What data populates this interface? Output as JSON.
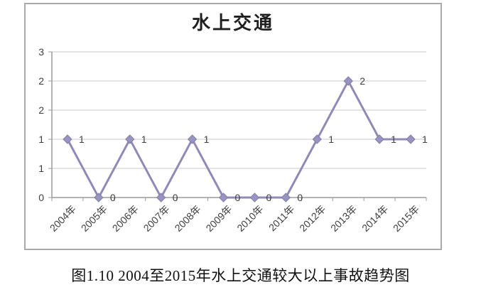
{
  "page": {
    "background": "#ffffff"
  },
  "chart": {
    "title": "水上交通",
    "frame_border_color": "#a9a9a9"
  },
  "caption": {
    "text": "图1.10 2004至2015年水上交通较大以上事故趋势图"
  },
  "chart_data": {
    "type": "line",
    "title": "水上交通",
    "categories": [
      "2004年",
      "2005年",
      "2006年",
      "2007年",
      "2008年",
      "2009年",
      "2010年",
      "2011年",
      "2012年",
      "2013年",
      "2014年",
      "2015年"
    ],
    "values": [
      1,
      0,
      1,
      0,
      1,
      0,
      0,
      0,
      1,
      2,
      1,
      1
    ],
    "data_labels": [
      "1",
      "0",
      "1",
      "0",
      "1",
      "0",
      "0",
      "0",
      "1",
      "2",
      "1",
      "1"
    ],
    "xlabel": "",
    "ylabel": "",
    "ylim": [
      0,
      2.5
    ],
    "y_major_unit": 0.5,
    "y_tick_labels_bottom_to_top": [
      "0",
      "1",
      "1",
      "2",
      "2",
      "3"
    ],
    "grid": true,
    "legend": "none",
    "marker": "diamond",
    "colors": {
      "line": "#8f8bb6",
      "marker_fill": "#9894c0",
      "marker_edge": "#827ea9",
      "gridline": "#c9c9c9",
      "axis": "#9b9b9b",
      "tick_text": "#3f3f3f",
      "data_label_text": "#3f3f3f"
    }
  }
}
